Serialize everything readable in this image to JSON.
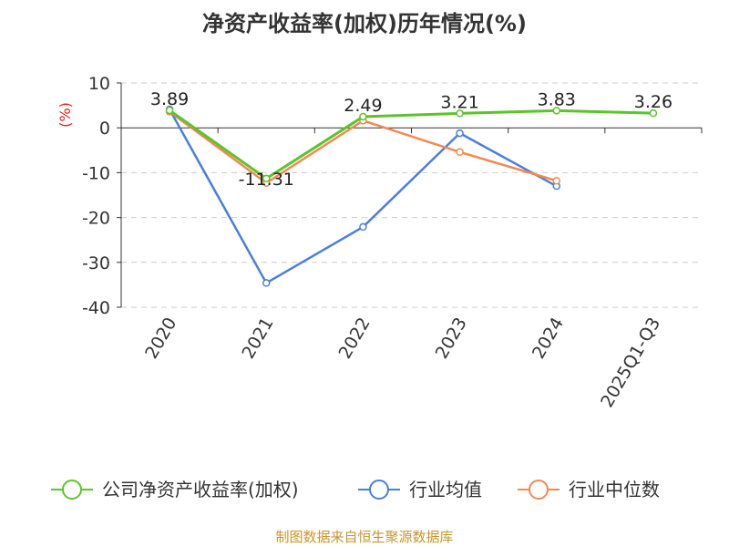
{
  "title": "净资产收益率(加权)历年情况(%)",
  "source": "制图数据来自恒生聚源数据库",
  "chart_data": {
    "type": "line",
    "title": "净资产收益率(加权)历年情况(%)",
    "ylabel": "(%)",
    "xlabel": "",
    "categories": [
      "2020",
      "2021",
      "2022",
      "2023",
      "2024",
      "2025Q1-Q3"
    ],
    "ylim": [
      -40,
      10
    ],
    "yticks": [
      10,
      0,
      -10,
      -20,
      -30,
      -40
    ],
    "grid": true,
    "legend_position": "bottom",
    "series": [
      {
        "name": "公司净资产收益率(加权)",
        "color": "#5cc42a",
        "values": [
          3.89,
          -11.31,
          2.49,
          3.21,
          3.83,
          3.26
        ],
        "labels": [
          "3.89",
          "-11.31",
          "2.49",
          "3.21",
          "3.83",
          "3.26"
        ]
      },
      {
        "name": "行业均值",
        "color": "#4a7fdc",
        "values": [
          4.1,
          -34.6,
          -22.1,
          -1.2,
          -13.0,
          null
        ]
      },
      {
        "name": "行业中位数",
        "color": "#f08a52",
        "values": [
          3.6,
          -12.3,
          1.6,
          -5.4,
          -11.8,
          null
        ]
      }
    ]
  }
}
